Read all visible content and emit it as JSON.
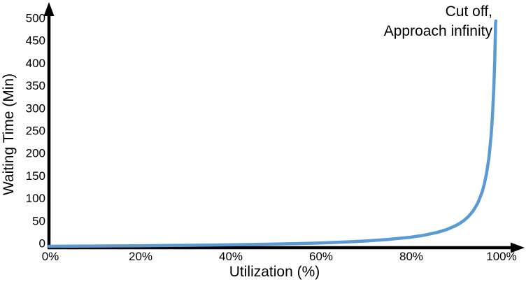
{
  "chart_data": {
    "type": "line",
    "title": "",
    "xlabel": "Utilization (%)",
    "ylabel": "Waiting Time (Min)",
    "xlim": [
      0,
      100
    ],
    "ylim": [
      0,
      500
    ],
    "x_tick_values": [
      0,
      20,
      40,
      60,
      80,
      100
    ],
    "x_tick_labels": [
      "0%",
      "20%",
      "40%",
      "60%",
      "80%",
      "100%"
    ],
    "y_tick_values": [
      0,
      50,
      100,
      150,
      200,
      250,
      300,
      350,
      400,
      450,
      500
    ],
    "y_tick_labels": [
      "0",
      "50",
      "100",
      "150",
      "200",
      "250",
      "300",
      "350",
      "400",
      "450",
      "500"
    ],
    "annotation_lines": [
      "Cut off,",
      "Approach infinity"
    ],
    "grid": false,
    "legend": "none",
    "line_color": "#5B9BD5",
    "axis_color": "#000000",
    "text_color": "#000000",
    "series": [
      {
        "name": "Waiting Time",
        "points": [
          [
            0,
            0
          ],
          [
            5,
            0.3
          ],
          [
            10,
            0.6
          ],
          [
            15,
            0.9
          ],
          [
            20,
            1.3
          ],
          [
            25,
            1.7
          ],
          [
            30,
            2.1
          ],
          [
            35,
            2.7
          ],
          [
            40,
            3.3
          ],
          [
            45,
            4.1
          ],
          [
            50,
            5
          ],
          [
            55,
            6.1
          ],
          [
            60,
            7.5
          ],
          [
            65,
            9.3
          ],
          [
            70,
            11.7
          ],
          [
            75,
            15
          ],
          [
            80,
            20
          ],
          [
            83,
            24.4
          ],
          [
            86,
            30.7
          ],
          [
            88,
            36.7
          ],
          [
            90,
            45
          ],
          [
            91,
            50.6
          ],
          [
            92,
            57.5
          ],
          [
            93,
            66.4
          ],
          [
            94,
            78.3
          ],
          [
            95,
            95
          ],
          [
            96,
            120
          ],
          [
            96.5,
            138
          ],
          [
            97,
            162
          ],
          [
            97.5,
            195
          ],
          [
            98,
            245
          ],
          [
            98.3,
            289
          ],
          [
            98.6,
            352
          ],
          [
            98.8,
            412
          ],
          [
            99,
            495
          ],
          [
            99.05,
            500
          ]
        ]
      }
    ]
  }
}
